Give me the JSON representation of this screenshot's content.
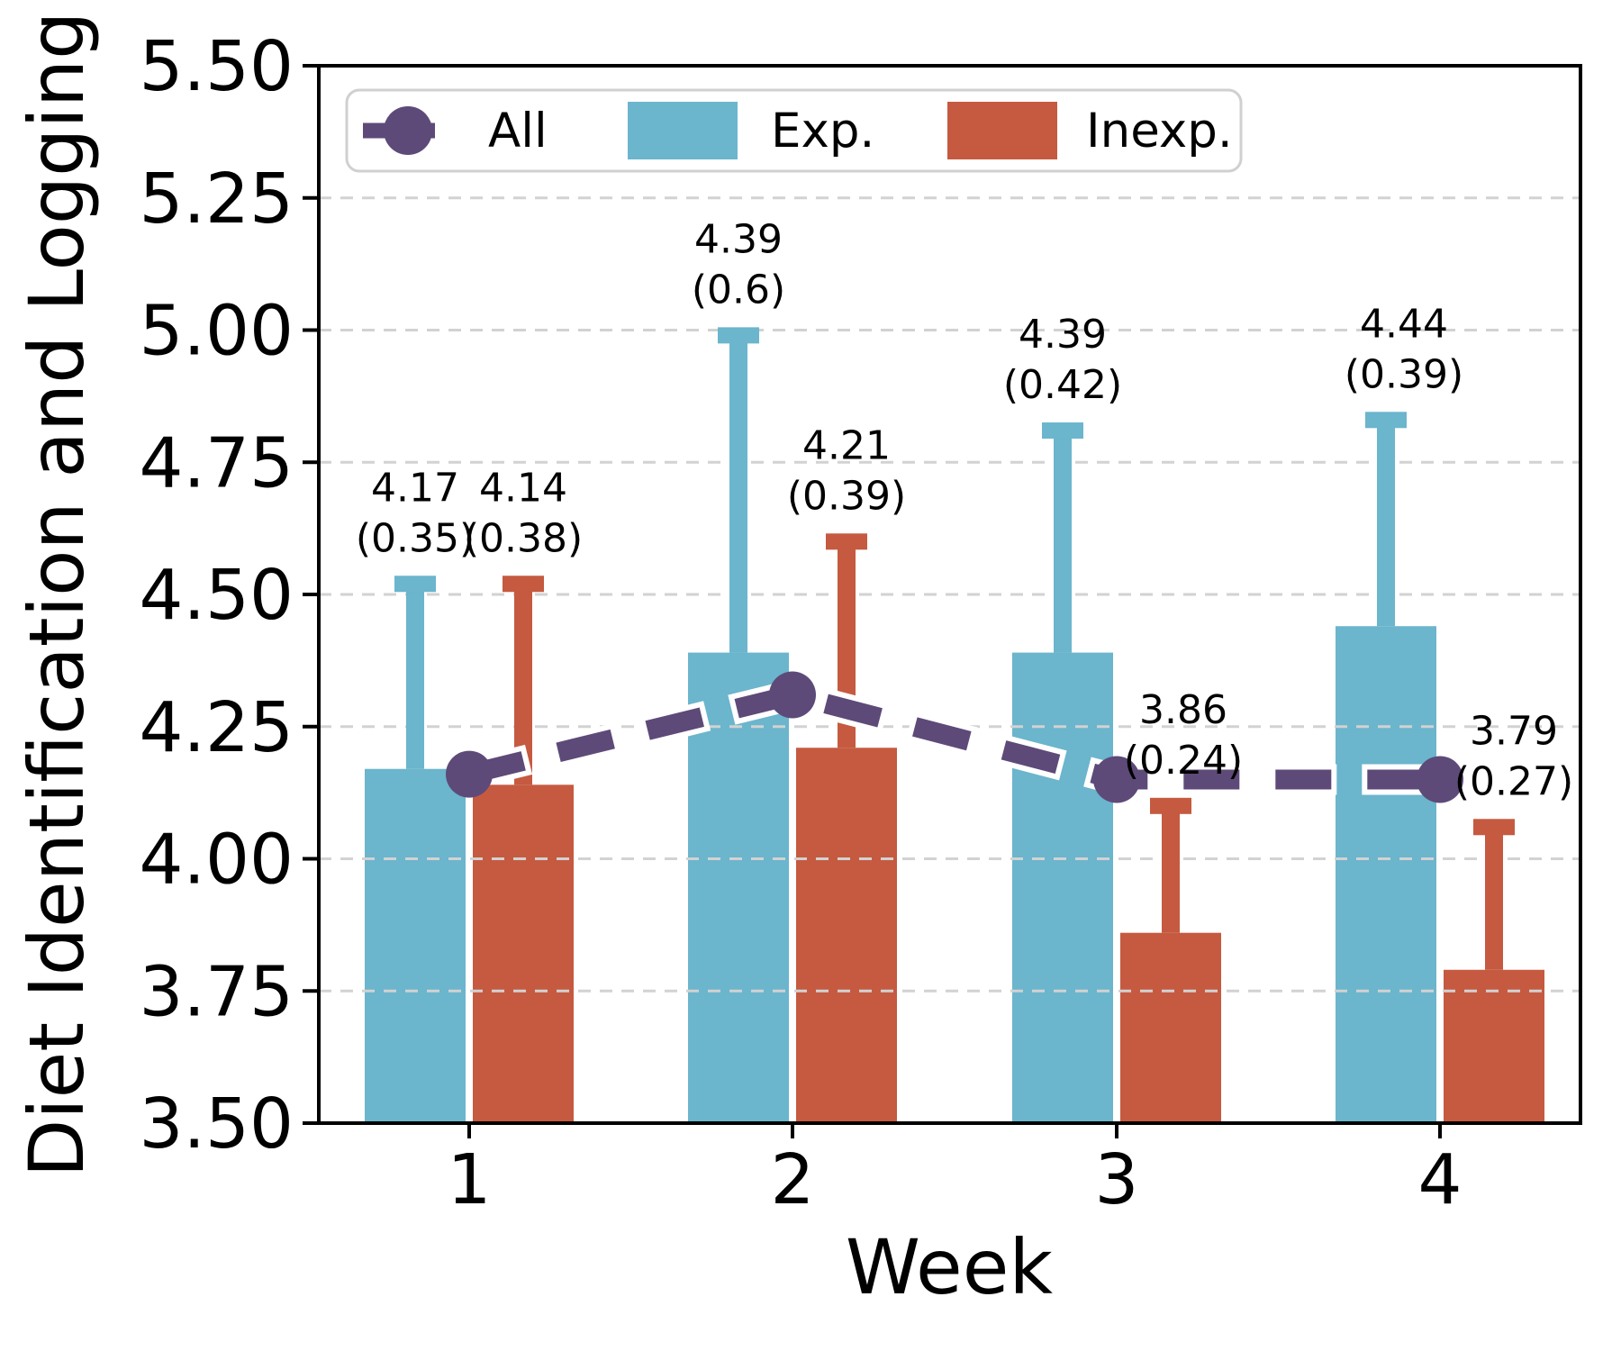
{
  "chart_data": {
    "type": "bar",
    "title": "",
    "xlabel": "Week",
    "ylabel": "Diet Identification and Logging",
    "categories": [
      "1",
      "2",
      "3",
      "4"
    ],
    "ylim": [
      3.5,
      5.5
    ],
    "ytick_interval": 0.25,
    "ytick_labels": [
      "5.50",
      "5.25",
      "5.00",
      "4.75",
      "4.50",
      "4.25",
      "4.00",
      "3.75",
      "3.50"
    ],
    "grid": true,
    "grid_style": "dashed",
    "legend_position": "upper left",
    "series": [
      {
        "name": "All",
        "type": "line",
        "linestyle": "dashed",
        "marker": "circle",
        "color": "#5d4a78",
        "values": [
          4.16,
          4.31,
          4.15,
          4.15
        ]
      },
      {
        "name": "Exp.",
        "type": "bar",
        "color": "#6bb5cd",
        "means": [
          4.17,
          4.39,
          4.39,
          4.44
        ],
        "stds": [
          0.35,
          0.6,
          0.42,
          0.39
        ],
        "annotations": [
          [
            "4.17",
            "(0.35)"
          ],
          [
            "4.39",
            "(0.6)"
          ],
          [
            "4.39",
            "(0.42)"
          ],
          [
            "4.44",
            "(0.39)"
          ]
        ]
      },
      {
        "name": "Inexp.",
        "type": "bar",
        "color": "#c55a40",
        "means": [
          4.14,
          4.21,
          3.86,
          3.79
        ],
        "stds": [
          0.38,
          0.39,
          0.24,
          0.27
        ],
        "annotations": [
          [
            "4.14",
            "(0.38)"
          ],
          [
            "4.21",
            "(0.39)"
          ],
          [
            "3.86",
            "(0.24)"
          ],
          [
            "3.79",
            "(0.27)"
          ]
        ]
      }
    ],
    "colors": {
      "grid": "#d2d2d2",
      "axis": "#000000",
      "background": "#ffffff",
      "annotation_text": "#000000",
      "line_outline": "#ffffff",
      "legend_border": "#d0d0d0"
    }
  }
}
